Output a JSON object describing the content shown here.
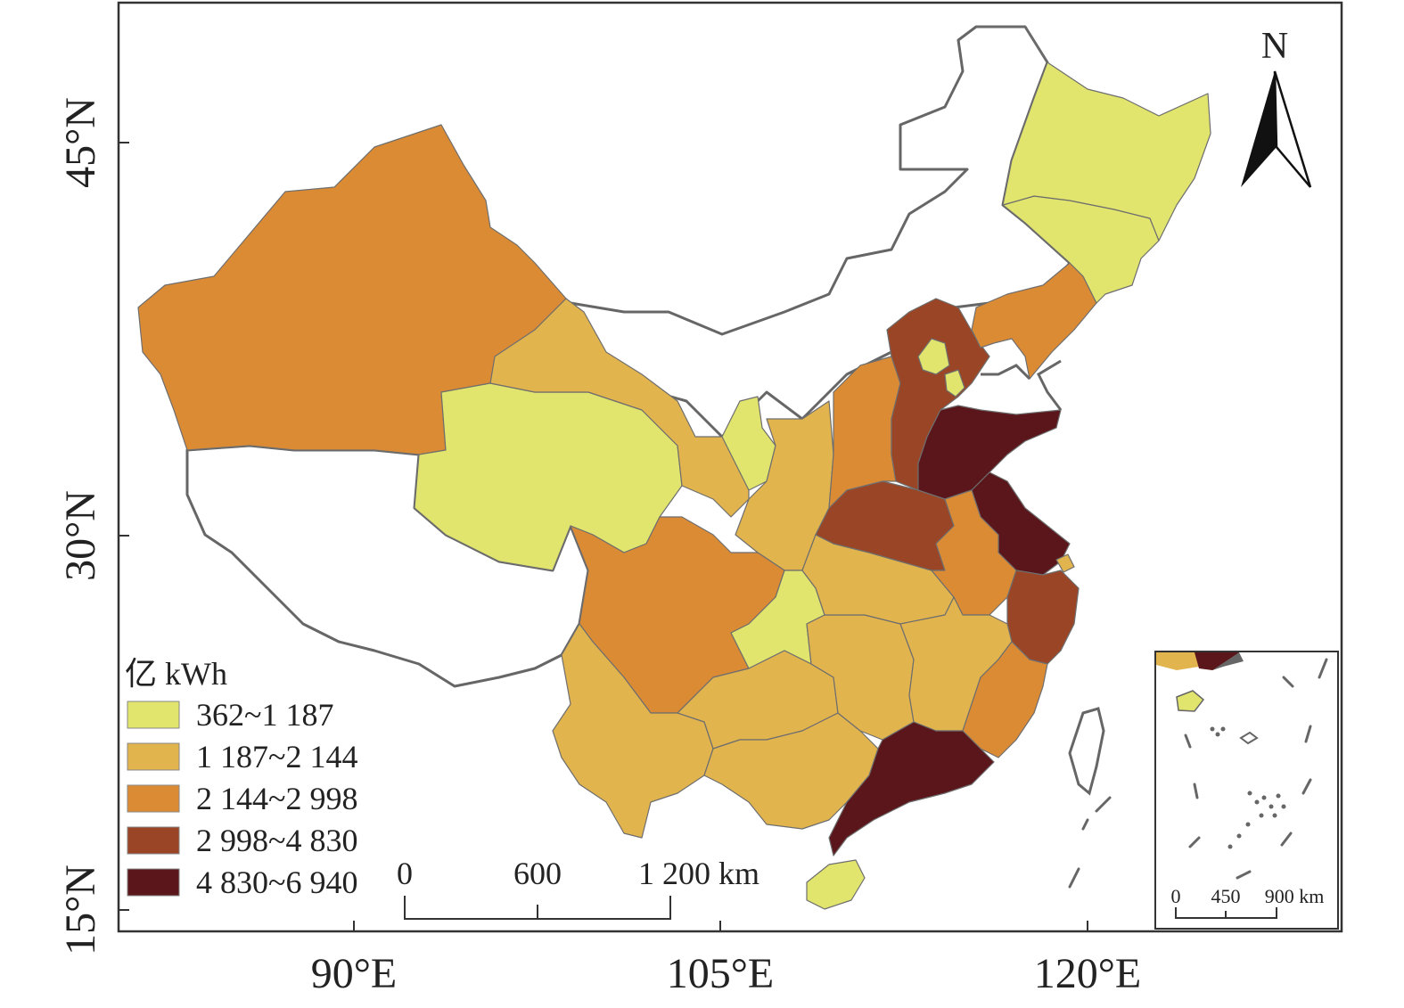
{
  "axes": {
    "x_ticks": [
      "90°E",
      "105°E",
      "120°E"
    ],
    "y_ticks": [
      "45°N",
      "30°N",
      "15°N"
    ]
  },
  "north_label": "N",
  "legend": {
    "unit": "亿 kWh",
    "classes": [
      {
        "label": "362~1 187",
        "color": "#e1e56d"
      },
      {
        "label": "1 187~2 144",
        "color": "#e2b44e"
      },
      {
        "label": "2 144~2 998",
        "color": "#dc8b35"
      },
      {
        "label": "2 998~4 830",
        "color": "#9a4526"
      },
      {
        "label": "4 830~6 940",
        "color": "#5a161a"
      }
    ]
  },
  "scale_bar": {
    "labels": [
      "0",
      "600",
      "1 200 km"
    ]
  },
  "inset": {
    "scale_labels": [
      "0",
      "450",
      "900 km"
    ]
  },
  "colors": {
    "border": "#6e6e6e",
    "frame": "#333333"
  }
}
